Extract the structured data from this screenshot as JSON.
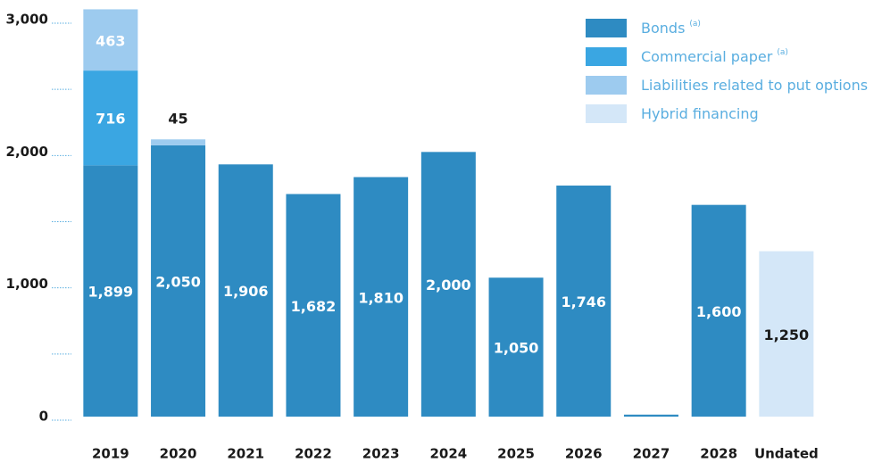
{
  "chart_data": {
    "type": "stacked_bar",
    "categories": [
      "2019",
      "2020",
      "2021",
      "2022",
      "2023",
      "2024",
      "2025",
      "2026",
      "2027",
      "2028",
      "Undated"
    ],
    "series": [
      {
        "name": "Bonds",
        "note": "(a)",
        "color": "#2e8bc2",
        "label_color": "#ffffff",
        "values": [
          1899,
          2050,
          1906,
          1682,
          1810,
          2000,
          1050,
          1746,
          15,
          1600,
          null
        ],
        "value_labels": [
          "1,899",
          "2,050",
          "1,906",
          "1,682",
          "1,810",
          "2,000",
          "1,050",
          "1,746",
          null,
          "1,600",
          null
        ]
      },
      {
        "name": "Commercial paper",
        "note": "(a)",
        "color": "#3aa6e2",
        "label_color": "#ffffff",
        "values": [
          716,
          null,
          null,
          null,
          null,
          null,
          null,
          null,
          null,
          null,
          null
        ],
        "value_labels": [
          "716",
          null,
          null,
          null,
          null,
          null,
          null,
          null,
          null,
          null,
          null
        ]
      },
      {
        "name": "Liabilities related to put options",
        "color": "#9dcbef",
        "label_color": "#ffffff",
        "values": [
          463,
          45,
          null,
          null,
          null,
          null,
          null,
          null,
          null,
          null,
          null
        ],
        "value_labels": [
          "463",
          "45",
          null,
          null,
          null,
          null,
          null,
          null,
          null,
          null,
          null
        ]
      },
      {
        "name": "Hybrid financing",
        "color": "#d4e7f8",
        "label_color": "#1a1a1a",
        "values": [
          null,
          null,
          null,
          null,
          null,
          null,
          null,
          null,
          null,
          null,
          1250
        ],
        "value_labels": [
          null,
          null,
          null,
          null,
          null,
          null,
          null,
          null,
          null,
          null,
          "1,250"
        ]
      }
    ],
    "ylim": [
      0,
      3000
    ],
    "yticks": [
      0,
      {
        "value": 1000,
        "label": "1,000"
      },
      {
        "value": 2000,
        "label": "2,000"
      },
      {
        "value": 3000,
        "label": "3,000"
      }
    ],
    "minor_yticks": [
      500,
      1500,
      2500
    ],
    "legend": "upper right"
  }
}
